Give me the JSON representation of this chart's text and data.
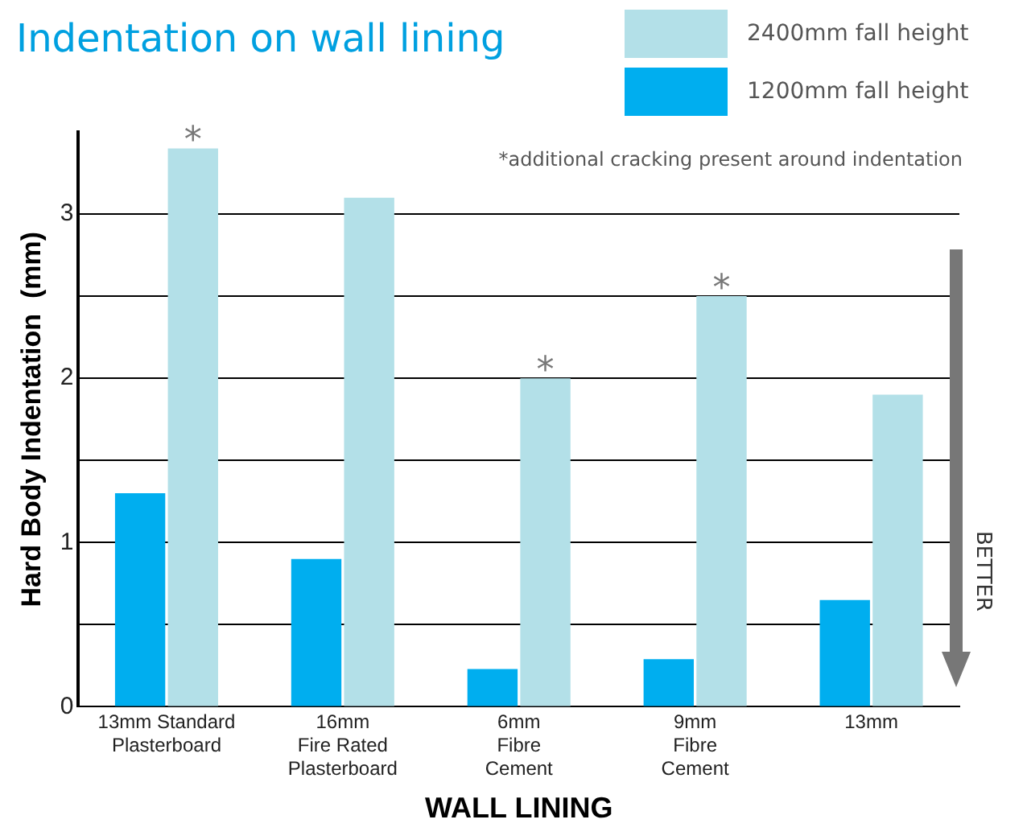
{
  "chart_data": {
    "type": "bar",
    "title": "Indentation on wall lining",
    "xlabel": "WALL LINING",
    "ylabel": "Hard Body Indentation  (mm)",
    "categories": [
      "13mm Standard\nPlasterboard",
      "16mm\nFire Rated\nPlasterboard",
      "6mm\nFibre\nCement",
      "9mm\nFibre\nCement",
      "13mm"
    ],
    "series": [
      {
        "name": "1200mm fall height",
        "color": "#00aeef",
        "values": [
          1.3,
          0.9,
          0.23,
          0.29,
          0.65
        ]
      },
      {
        "name": "2400mm fall height",
        "color": "#b3e0e8",
        "values": [
          3.4,
          3.1,
          2.0,
          2.5,
          1.9
        ]
      }
    ],
    "ylim": [
      0,
      3.5
    ],
    "yticks": [
      0,
      {
        "value": 0.5,
        "label": null
      },
      1,
      {
        "value": 1.5,
        "label": null
      },
      2,
      {
        "value": 2.5,
        "label": null
      },
      3
    ],
    "grid": "y",
    "legend": "top right",
    "annotations": [
      {
        "text": "*",
        "x": "13mm Standard\nPlasterboard",
        "y": 3.4
      },
      {
        "text": "*",
        "x": "6mm\nFibre\nCement",
        "y": 2.0
      },
      {
        "text": "*",
        "x": "9mm\nFibre\nCement",
        "y": 2.5
      },
      "*additional cracking present around indentation",
      "BETTER"
    ]
  }
}
